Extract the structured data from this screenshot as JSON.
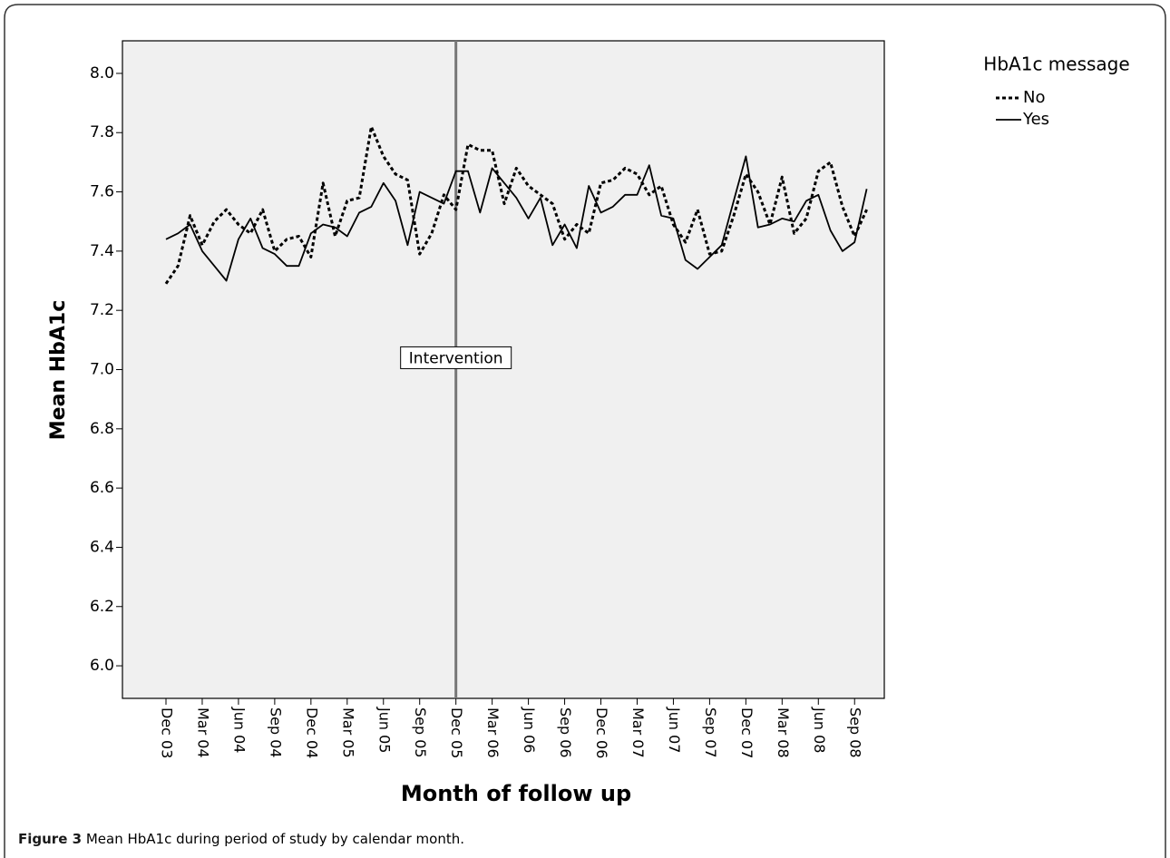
{
  "chart_data": {
    "type": "line",
    "y_label": "Mean HbA1c",
    "x_label": "Month of follow up",
    "categories": [
      "Dec 03",
      null,
      null,
      "Mar 04",
      null,
      null,
      "Jun 04",
      null,
      null,
      "Sep 04",
      null,
      null,
      "Dec 04",
      null,
      null,
      "Mar 05",
      null,
      null,
      "Jun 05",
      null,
      null,
      "Sep 05",
      null,
      null,
      "Dec 05",
      null,
      null,
      "Mar 06",
      null,
      null,
      "Jun 06",
      null,
      null,
      "Sep 06",
      null,
      null,
      "Dec 06",
      null,
      null,
      "Mar 07",
      null,
      null,
      "Jun 07",
      null,
      null,
      "Sep 07",
      null,
      null,
      "Dec 07",
      null,
      null,
      "Mar 08",
      null,
      null,
      "Jun 08",
      null,
      null,
      "Sep 08",
      null
    ],
    "series": [
      {
        "name": "No",
        "color": "#000000",
        "style": "dashed",
        "values": [
          7.29,
          7.35,
          7.52,
          7.42,
          7.5,
          7.54,
          7.49,
          7.46,
          7.54,
          7.4,
          7.44,
          7.45,
          7.38,
          7.63,
          7.45,
          7.57,
          7.58,
          7.82,
          7.72,
          7.66,
          7.64,
          7.39,
          7.46,
          7.59,
          7.54,
          7.76,
          7.74,
          7.74,
          7.56,
          7.68,
          7.62,
          7.59,
          7.56,
          7.44,
          7.49,
          7.46,
          7.63,
          7.64,
          7.68,
          7.66,
          7.59,
          7.62,
          7.49,
          7.43,
          7.54,
          7.39,
          7.4,
          7.52,
          7.66,
          7.6,
          7.49,
          7.65,
          7.46,
          7.51,
          7.67,
          7.7,
          7.55,
          7.45,
          7.54
        ]
      },
      {
        "name": "Yes",
        "color": "#000000",
        "style": "solid",
        "values": [
          7.44,
          7.46,
          7.49,
          7.4,
          7.35,
          7.3,
          7.44,
          7.51,
          7.41,
          7.39,
          7.35,
          7.35,
          7.46,
          7.49,
          7.48,
          7.45,
          7.53,
          7.55,
          7.63,
          7.57,
          7.42,
          7.6,
          7.58,
          7.56,
          7.67,
          7.67,
          7.53,
          7.68,
          7.63,
          7.58,
          7.51,
          7.58,
          7.42,
          7.49,
          7.41,
          7.62,
          7.53,
          7.55,
          7.59,
          7.59,
          7.69,
          7.52,
          7.51,
          7.37,
          7.34,
          7.38,
          7.42,
          7.57,
          7.72,
          7.48,
          7.49,
          7.51,
          7.5,
          7.57,
          7.59,
          7.47,
          7.4,
          7.43,
          7.61
        ]
      }
    ],
    "ylim": [
      5.89,
      8.11
    ],
    "yticks": [
      {
        "value": 6.0,
        "label": "6.0"
      },
      {
        "value": 6.2,
        "label": "6.2"
      },
      {
        "value": 6.4,
        "label": "6.4"
      },
      {
        "value": 6.6,
        "label": "6.6"
      },
      {
        "value": 6.8,
        "label": "6.8"
      },
      {
        "value": 7.0,
        "label": "7.0"
      },
      {
        "value": 7.2,
        "label": "7.2"
      },
      {
        "value": 7.4,
        "label": "7.4"
      },
      {
        "value": 7.6,
        "label": "7.6"
      },
      {
        "value": 7.8,
        "label": "7.8"
      },
      {
        "value": 8.0,
        "label": "8.0"
      }
    ],
    "legend_title": "HbA1c message",
    "legend_position": "outside-top-right",
    "plot_background": "#f0f0f0",
    "annotations": [
      {
        "text": "Intervention",
        "x": "Dec 05",
        "y": 7.04
      }
    ]
  },
  "figure": {
    "label": "Figure 3",
    "caption": "Mean HbA1c during period of study by calendar month."
  }
}
